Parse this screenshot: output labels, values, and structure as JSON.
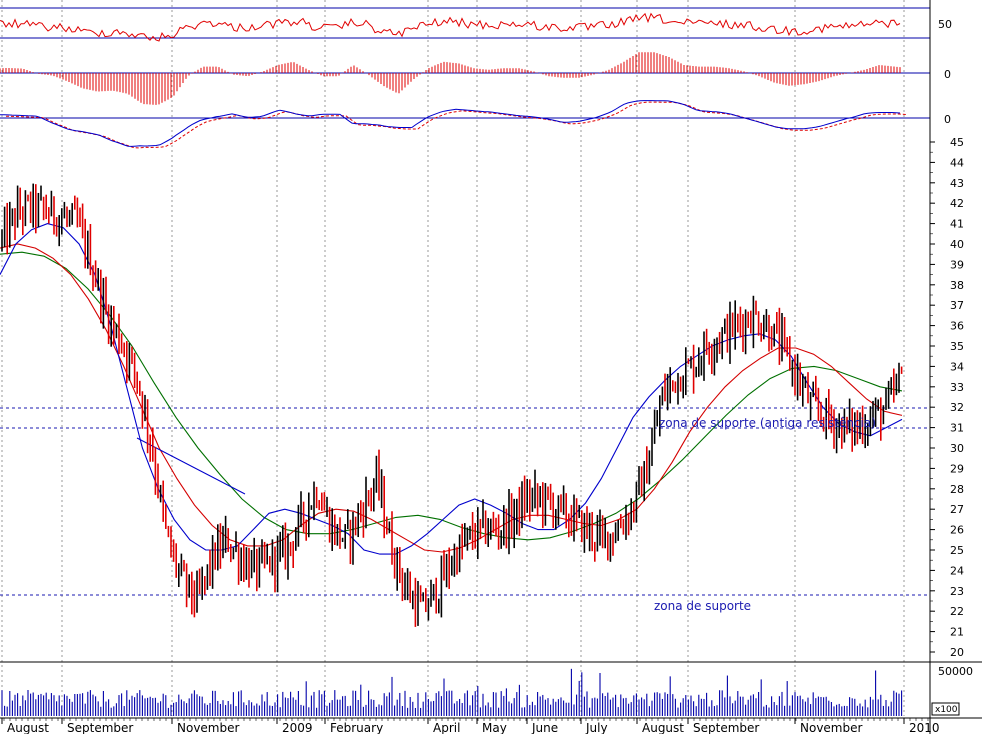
{
  "chart_data": {
    "type": "line",
    "title": "",
    "months": [
      "August",
      "September",
      "November",
      "2009",
      "February",
      "April",
      "May",
      "June",
      "July",
      "August",
      "September",
      "November",
      "2010"
    ],
    "price_panel": {
      "ylim": [
        20,
        45
      ],
      "yticks": [
        20,
        21,
        22,
        23,
        24,
        25,
        26,
        27,
        28,
        29,
        30,
        31,
        32,
        33,
        34,
        35,
        36,
        37,
        38,
        39,
        40,
        41,
        42,
        43,
        44,
        45
      ],
      "close": [
        40.2,
        41.5,
        41.8,
        41.6,
        41.3,
        41.0,
        39.0,
        36.5,
        35.2,
        33.5,
        30.0,
        25.5,
        23.5,
        22.5,
        24.5,
        25.5,
        24.5,
        24.0,
        24.5,
        25.0,
        26.5,
        28.0,
        26.0,
        25.5,
        27.0,
        28.5,
        25.0,
        23.0,
        22.0,
        23.0,
        24.5,
        25.5,
        26.0,
        26.0,
        26.5,
        27.5,
        27.5,
        27.0,
        26.5,
        26.0,
        25.5,
        26.0,
        27.0,
        29.0,
        32.5,
        33.5,
        34.0,
        35.0,
        35.5,
        36.0,
        36.5,
        36.0,
        35.0,
        33.5,
        32.0,
        31.5,
        31.0,
        31.0,
        31.5,
        32.0,
        33.5
      ],
      "sma_blue": [
        38.5,
        40.0,
        40.7,
        41.0,
        40.8,
        40.0,
        38.5,
        36.0,
        33.0,
        30.0,
        28.0,
        26.5,
        25.5,
        25.0,
        25.0,
        25.2,
        26.0,
        26.8,
        27.0,
        26.8,
        26.5,
        26.2,
        25.8,
        25.0,
        24.8,
        24.8,
        25.2,
        25.8,
        26.5,
        27.2,
        27.5,
        27.2,
        26.8,
        26.3,
        26.0,
        26.0,
        26.5,
        27.3,
        28.5,
        30.0,
        31.5,
        32.5,
        33.3,
        34.0,
        34.5,
        35.0,
        35.3,
        35.5,
        35.6,
        35.3,
        34.5,
        33.2,
        32.0,
        31.2,
        30.8,
        30.6,
        31.0,
        31.4
      ],
      "sma_red": [
        39.8,
        40.0,
        39.8,
        39.3,
        38.5,
        37.3,
        35.8,
        34.0,
        32.0,
        30.0,
        28.5,
        27.2,
        26.2,
        25.5,
        25.2,
        25.2,
        25.5,
        26.2,
        26.8,
        27.0,
        26.9,
        26.5,
        26.0,
        25.5,
        25.0,
        24.9,
        25.1,
        25.5,
        26.0,
        26.5,
        26.7,
        26.7,
        26.5,
        26.3,
        26.2,
        26.5,
        27.0,
        28.0,
        29.3,
        30.8,
        32.0,
        33.0,
        33.8,
        34.4,
        34.9,
        34.9,
        34.6,
        34.0,
        33.2,
        32.4,
        31.8,
        31.6
      ],
      "sma_green": [
        39.5,
        39.6,
        39.4,
        38.8,
        37.8,
        36.5,
        35.0,
        33.2,
        31.5,
        30.0,
        28.7,
        27.5,
        26.6,
        26.0,
        25.8,
        25.8,
        26.0,
        26.3,
        26.6,
        26.7,
        26.5,
        26.1,
        25.8,
        25.6,
        25.5,
        25.6,
        25.9,
        26.3,
        26.8,
        27.5,
        28.4,
        29.4,
        30.5,
        31.6,
        32.6,
        33.4,
        33.9,
        34.0,
        33.8,
        33.4,
        33.0,
        32.8
      ],
      "lines": [
        {
          "label": "zona de suporte (antiga resistência)",
          "values": [
            30,
            29
          ]
        },
        {
          "label": "zona de suporte",
          "values": [
            22
          ]
        }
      ]
    },
    "indicator_panels": [
      {
        "name": "oscillator",
        "levels": [
          50
        ],
        "tick_label": "50"
      },
      {
        "name": "histogram",
        "levels": [
          0
        ],
        "tick_label": "0"
      },
      {
        "name": "macd",
        "levels": [
          0
        ],
        "tick_label": "0"
      }
    ],
    "volume_panel": {
      "tick_label": "50000",
      "multiplier": "x100"
    },
    "colors": {
      "price_up": "#000000",
      "price_down": "#e00000",
      "sma_fast": "#0000cc",
      "sma_mid": "#d40000",
      "sma_slow": "#007000",
      "support": "#1a1ab0",
      "grid": "#9a9a9a"
    }
  }
}
